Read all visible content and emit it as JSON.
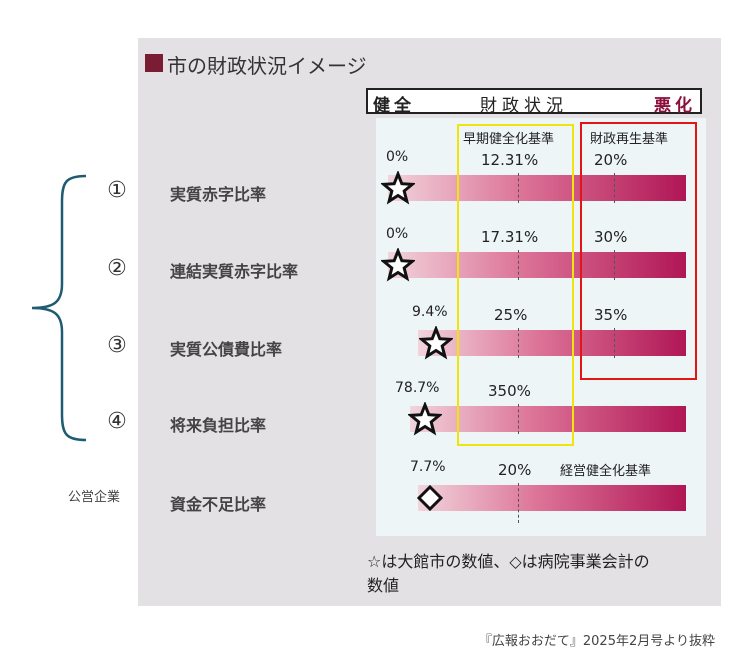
{
  "title": "市の財政状況イメージ",
  "header": {
    "left": "健全",
    "middle": "財政状況",
    "right": "悪化"
  },
  "group_label": "公営企業",
  "note_line1": "☆は大館市の数値、◇は病院事業会計の",
  "note_line2": "数値",
  "source": "『広報おおだて』2025年2月号より抜粋",
  "colors": {
    "bar_dark": "#b01655",
    "bar_light": "#f1d4dc",
    "yellow_box": "#f0e40c",
    "red_box": "#e31515",
    "header_bad": "#8a0f3a"
  },
  "chart_data": {
    "type": "bar",
    "title": "市の財政状況イメージ",
    "rows": [
      {
        "number": "①",
        "name": "実質赤字比率",
        "value": 0,
        "value_label": "0%",
        "marker": "star",
        "std_early": 12.31,
        "std_early_label": "12.31%",
        "std_rebuild": 20,
        "std_rebuild_label": "20%"
      },
      {
        "number": "②",
        "name": "連結実質赤字比率",
        "value": 0,
        "value_label": "0%",
        "marker": "star",
        "std_early": 17.31,
        "std_early_label": "17.31%",
        "std_rebuild": 30,
        "std_rebuild_label": "30%"
      },
      {
        "number": "③",
        "name": "実質公債費比率",
        "value": 9.4,
        "value_label": "9.4%",
        "marker": "star",
        "std_early": 25,
        "std_early_label": "25%",
        "std_rebuild": 35,
        "std_rebuild_label": "35%"
      },
      {
        "number": "④",
        "name": "将来負担比率",
        "value": 78.7,
        "value_label": "78.7%",
        "marker": "star",
        "std_early": 350,
        "std_early_label": "350%",
        "std_rebuild": null,
        "std_rebuild_label": ""
      },
      {
        "number": "",
        "name": "資金不足比率",
        "value": 7.7,
        "value_label": "7.7%",
        "marker": "diamond",
        "std_early": 20,
        "std_early_label": "20%",
        "std_rebuild": null,
        "std_rebuild_label": ""
      }
    ],
    "std_early_name": "早期健全化基準",
    "std_rebuild_name": "財政再生基準",
    "std_business_name": "経営健全化基準",
    "legend": "none"
  }
}
